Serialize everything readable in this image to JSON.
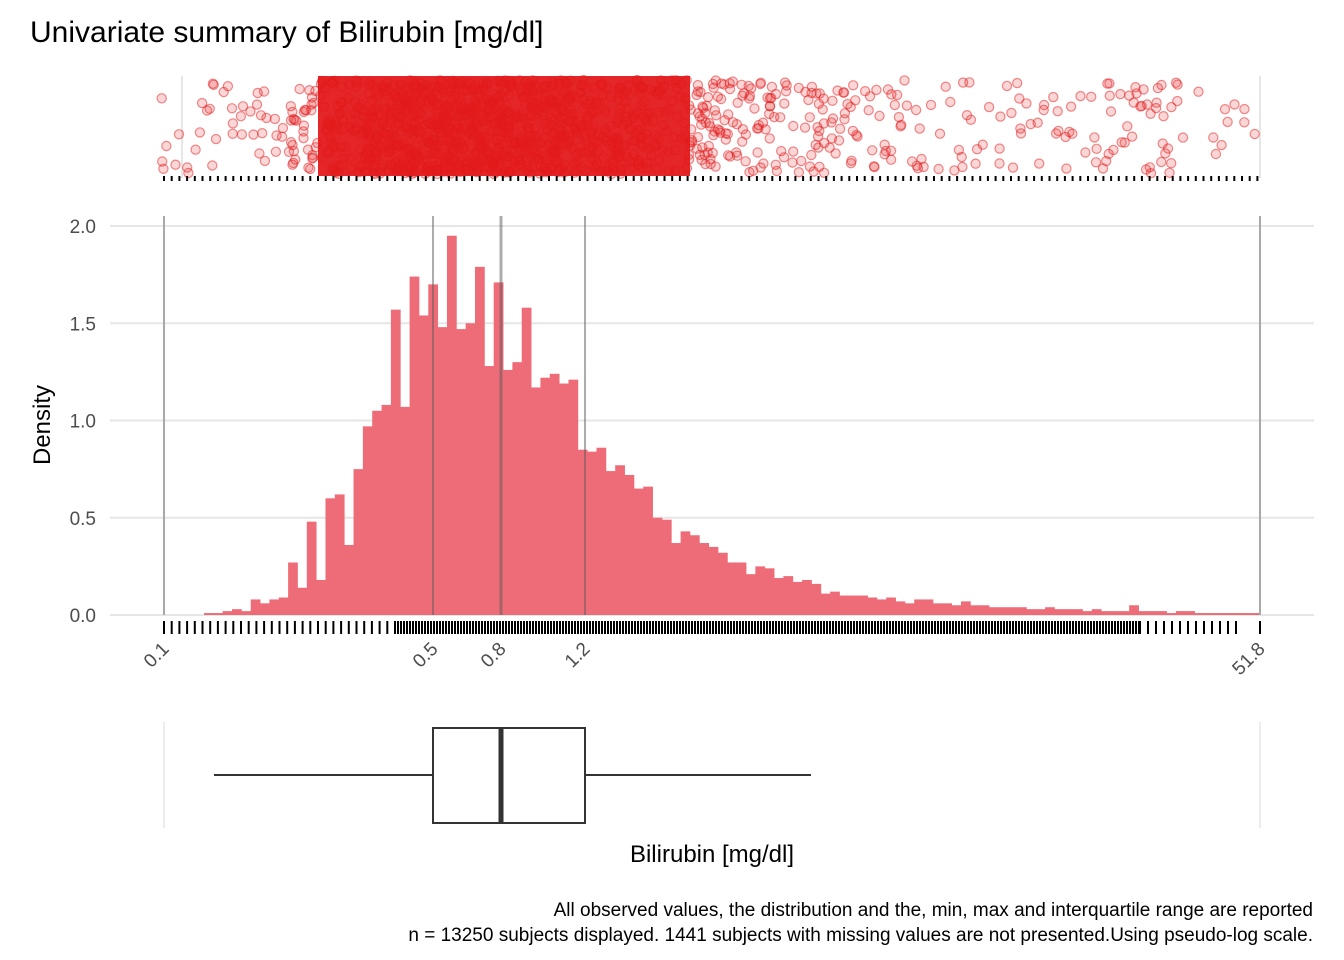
{
  "chart_data": {
    "type": "histogram",
    "title": "Univariate summary of Bilirubin [mg/dl]",
    "xlabel": "Bilirubin [mg/dl]",
    "ylabel": "Density",
    "x_scale": "pseudo-log",
    "x_ticks": [
      "0.1",
      "0.5",
      "0.8",
      "1.2",
      "51.8"
    ],
    "x_tick_values": [
      0.1,
      0.5,
      0.8,
      1.2,
      51.8
    ],
    "y_ticks": [
      "0.0",
      "0.5",
      "1.0",
      "1.5",
      "2.0"
    ],
    "ylim": [
      0,
      2.0
    ],
    "grid": true,
    "bar_color": "#EE6C78",
    "point_color": "#E41A1C",
    "density_values": [
      0.01,
      0.01,
      0.02,
      0.03,
      0.02,
      0.08,
      0.06,
      0.08,
      0.09,
      0.27,
      0.14,
      0.48,
      0.18,
      0.6,
      0.62,
      0.36,
      0.75,
      0.97,
      1.05,
      1.08,
      1.57,
      1.07,
      1.74,
      1.54,
      1.7,
      1.48,
      1.95,
      1.47,
      1.5,
      1.79,
      1.28,
      1.71,
      1.26,
      1.3,
      1.58,
      1.17,
      1.22,
      1.24,
      1.19,
      1.21,
      0.85,
      0.84,
      0.86,
      0.74,
      0.77,
      0.72,
      0.65,
      0.66,
      0.5,
      0.49,
      0.37,
      0.43,
      0.41,
      0.37,
      0.35,
      0.32,
      0.27,
      0.27,
      0.21,
      0.25,
      0.24,
      0.19,
      0.2,
      0.17,
      0.18,
      0.16,
      0.11,
      0.12,
      0.1,
      0.1,
      0.1,
      0.09,
      0.08,
      0.09,
      0.07,
      0.06,
      0.08,
      0.08,
      0.06,
      0.06,
      0.05,
      0.07,
      0.05,
      0.05,
      0.04,
      0.04,
      0.04,
      0.04,
      0.03,
      0.03,
      0.04,
      0.03,
      0.03,
      0.03,
      0.02,
      0.03,
      0.02,
      0.02,
      0.02,
      0.05,
      0.02,
      0.02,
      0.02,
      0.01,
      0.02,
      0.02,
      0.01,
      0.01,
      0.01,
      0.01,
      0.01,
      0.01,
      0.01
    ],
    "boxplot": {
      "min": 0.1,
      "whisker_low": 0.15,
      "q1": 0.5,
      "median": 0.8,
      "q3": 1.2,
      "whisker_high": 2.9,
      "max": 51.8
    },
    "n_displayed": 13250,
    "n_missing": 1441,
    "caption_lines": [
      "All observed values, the distribution and the, min, max and interquartile range are reported",
      "n = 13250 subjects displayed. 1441 subjects with missing values are not presented.Using pseudo-log scale."
    ]
  }
}
